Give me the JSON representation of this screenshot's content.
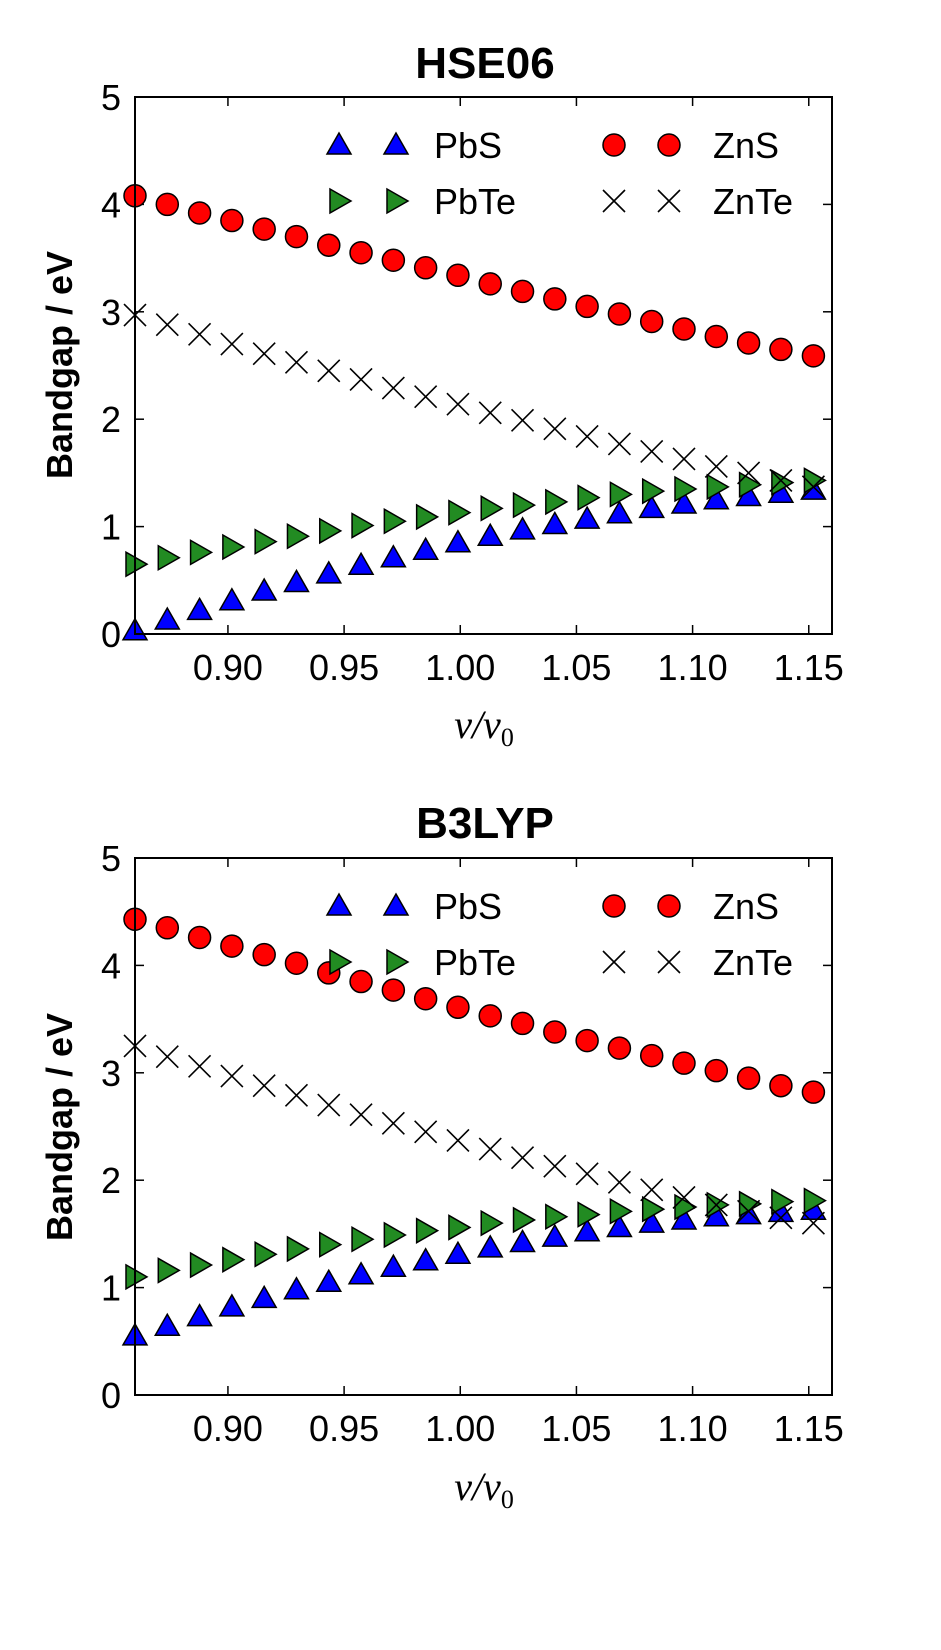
{
  "colors": {
    "PbS": "#0000ff",
    "PbTe": "#228b22",
    "ZnS": "#ff0000",
    "ZnTe": "#000000"
  },
  "chart_data": [
    {
      "type": "scatter",
      "title": "HSE06",
      "xlabel": "v/v0",
      "ylabel": "Bandgap / eV",
      "xlim": [
        0.86,
        1.16
      ],
      "ylim": [
        0,
        5
      ],
      "xticks": [
        0.9,
        0.95,
        1.0,
        1.05,
        1.1,
        1.15
      ],
      "xtick_labels": [
        "0.90",
        "0.95",
        "1.00",
        "1.05",
        "1.10",
        "1.15"
      ],
      "yticks": [
        0,
        1,
        2,
        3,
        4,
        5
      ],
      "ytick_labels": [
        "0",
        "1",
        "2",
        "3",
        "4",
        "5"
      ],
      "grid": false,
      "legend_position": "top-right",
      "x": [
        0.86,
        0.8739,
        0.8878,
        0.9017,
        0.9156,
        0.9295,
        0.9434,
        0.9573,
        0.9712,
        0.9851,
        0.999,
        1.0129,
        1.0268,
        1.0407,
        1.0546,
        1.0685,
        1.0824,
        1.0963,
        1.1102,
        1.1241,
        1.138,
        1.152
      ],
      "series": [
        {
          "name": "PbS",
          "marker": "triangle-up",
          "values": [
            0.03,
            0.13,
            0.22,
            0.31,
            0.4,
            0.48,
            0.56,
            0.64,
            0.71,
            0.78,
            0.85,
            0.91,
            0.97,
            1.02,
            1.07,
            1.12,
            1.17,
            1.21,
            1.25,
            1.28,
            1.31,
            1.34
          ]
        },
        {
          "name": "PbTe",
          "marker": "triangle-right",
          "values": [
            0.65,
            0.71,
            0.76,
            0.81,
            0.86,
            0.91,
            0.96,
            1.01,
            1.05,
            1.09,
            1.13,
            1.17,
            1.2,
            1.23,
            1.27,
            1.3,
            1.33,
            1.35,
            1.37,
            1.39,
            1.41,
            1.43
          ]
        },
        {
          "name": "ZnS",
          "marker": "circle",
          "values": [
            4.08,
            4.0,
            3.92,
            3.85,
            3.77,
            3.7,
            3.62,
            3.55,
            3.48,
            3.41,
            3.34,
            3.26,
            3.19,
            3.12,
            3.05,
            2.98,
            2.91,
            2.84,
            2.77,
            2.71,
            2.65,
            2.59
          ]
        },
        {
          "name": "ZnTe",
          "marker": "x",
          "values": [
            2.97,
            2.88,
            2.79,
            2.7,
            2.61,
            2.53,
            2.45,
            2.37,
            2.29,
            2.21,
            2.14,
            2.06,
            1.99,
            1.91,
            1.84,
            1.77,
            1.7,
            1.63,
            1.56,
            1.5,
            1.43,
            1.37
          ]
        }
      ]
    },
    {
      "type": "scatter",
      "title": "B3LYP",
      "xlabel": "v/v0",
      "ylabel": "Bandgap / eV",
      "xlim": [
        0.86,
        1.16
      ],
      "ylim": [
        0,
        5
      ],
      "xticks": [
        0.9,
        0.95,
        1.0,
        1.05,
        1.1,
        1.15
      ],
      "xtick_labels": [
        "0.90",
        "0.95",
        "1.00",
        "1.05",
        "1.10",
        "1.15"
      ],
      "yticks": [
        0,
        1,
        2,
        3,
        4,
        5
      ],
      "ytick_labels": [
        "0",
        "1",
        "2",
        "3",
        "4",
        "5"
      ],
      "grid": false,
      "legend_position": "top-right",
      "x": [
        0.86,
        0.8739,
        0.8878,
        0.9017,
        0.9156,
        0.9295,
        0.9434,
        0.9573,
        0.9712,
        0.9851,
        0.999,
        1.0129,
        1.0268,
        1.0407,
        1.0546,
        1.0685,
        1.0824,
        1.0963,
        1.1102,
        1.1241,
        1.138,
        1.152
      ],
      "series": [
        {
          "name": "PbS",
          "marker": "triangle-up",
          "values": [
            0.55,
            0.64,
            0.73,
            0.82,
            0.9,
            0.98,
            1.05,
            1.12,
            1.19,
            1.25,
            1.31,
            1.37,
            1.42,
            1.47,
            1.52,
            1.56,
            1.6,
            1.63,
            1.66,
            1.68,
            1.7,
            1.72
          ]
        },
        {
          "name": "PbTe",
          "marker": "triangle-right",
          "values": [
            1.1,
            1.16,
            1.21,
            1.26,
            1.31,
            1.36,
            1.4,
            1.45,
            1.49,
            1.53,
            1.56,
            1.6,
            1.63,
            1.66,
            1.68,
            1.71,
            1.73,
            1.75,
            1.77,
            1.78,
            1.8,
            1.81
          ]
        },
        {
          "name": "ZnS",
          "marker": "circle",
          "values": [
            4.43,
            4.35,
            4.26,
            4.18,
            4.1,
            4.02,
            3.93,
            3.85,
            3.77,
            3.69,
            3.61,
            3.53,
            3.46,
            3.38,
            3.3,
            3.23,
            3.16,
            3.09,
            3.02,
            2.95,
            2.88,
            2.82
          ]
        },
        {
          "name": "ZnTe",
          "marker": "x",
          "values": [
            3.25,
            3.15,
            3.06,
            2.97,
            2.88,
            2.79,
            2.7,
            2.61,
            2.53,
            2.45,
            2.37,
            2.29,
            2.21,
            2.13,
            2.06,
            1.98,
            1.91,
            1.84,
            1.77,
            1.71,
            1.65,
            1.6
          ]
        }
      ]
    }
  ]
}
